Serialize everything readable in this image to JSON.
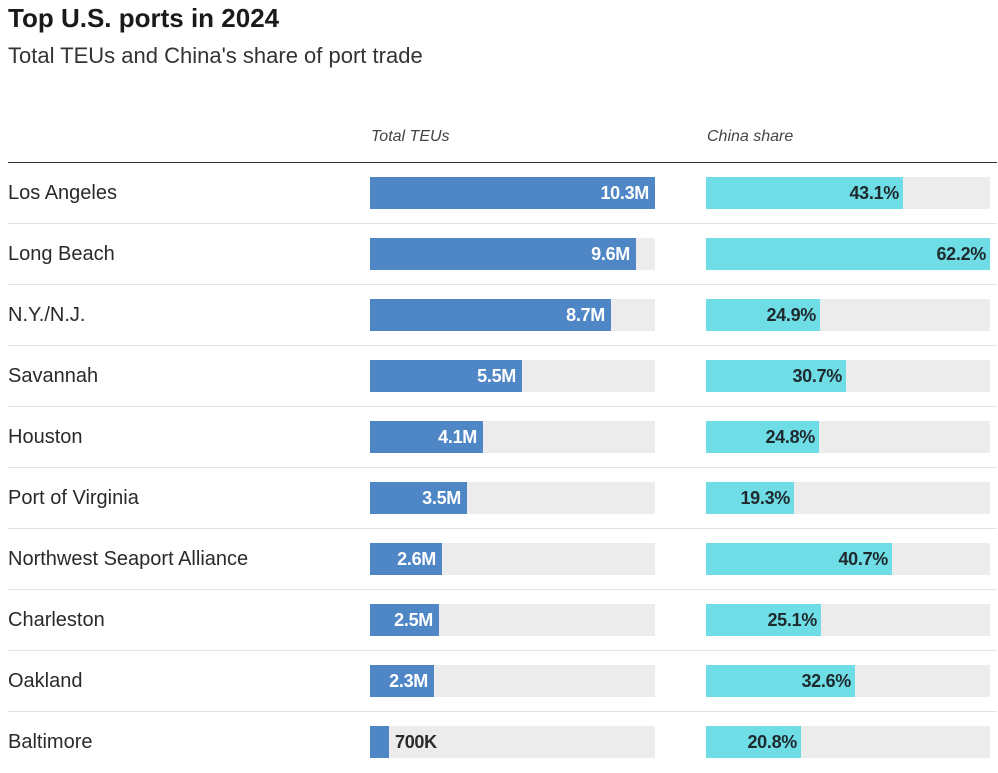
{
  "title": "Top U.S. ports in 2024",
  "subtitle": "Total TEUs and China's share of port trade",
  "colors": {
    "teu_bar": "#4f86c6",
    "china_bar": "#6fdde6",
    "track": "#ececec"
  },
  "chart_data": {
    "type": "bar",
    "title": "Top U.S. ports in 2024",
    "subtitle": "Total TEUs and China's share of port trade",
    "categories": [
      "Los Angeles",
      "Long Beach",
      "N.Y./N.J.",
      "Savannah",
      "Houston",
      "Port of Virginia",
      "Northwest Seaport Alliance",
      "Charleston",
      "Oakland",
      "Baltimore"
    ],
    "series": [
      {
        "name": "Total TEUs",
        "values": [
          10.3,
          9.6,
          8.7,
          5.5,
          4.1,
          3.5,
          2.6,
          2.5,
          2.3,
          0.7
        ],
        "labels": [
          "10.3M",
          "9.6M",
          "8.7M",
          "5.5M",
          "4.1M",
          "3.5M",
          "2.6M",
          "2.5M",
          "2.3M",
          "700K"
        ],
        "max": 10.3
      },
      {
        "name": "China share",
        "values": [
          43.1,
          62.2,
          24.9,
          30.7,
          24.8,
          19.3,
          40.7,
          25.1,
          32.6,
          20.8
        ],
        "labels": [
          "43.1%",
          "62.2%",
          "24.9%",
          "30.7%",
          "24.8%",
          "19.3%",
          "40.7%",
          "25.1%",
          "32.6%",
          "20.8%"
        ],
        "max": 62.2
      }
    ]
  }
}
